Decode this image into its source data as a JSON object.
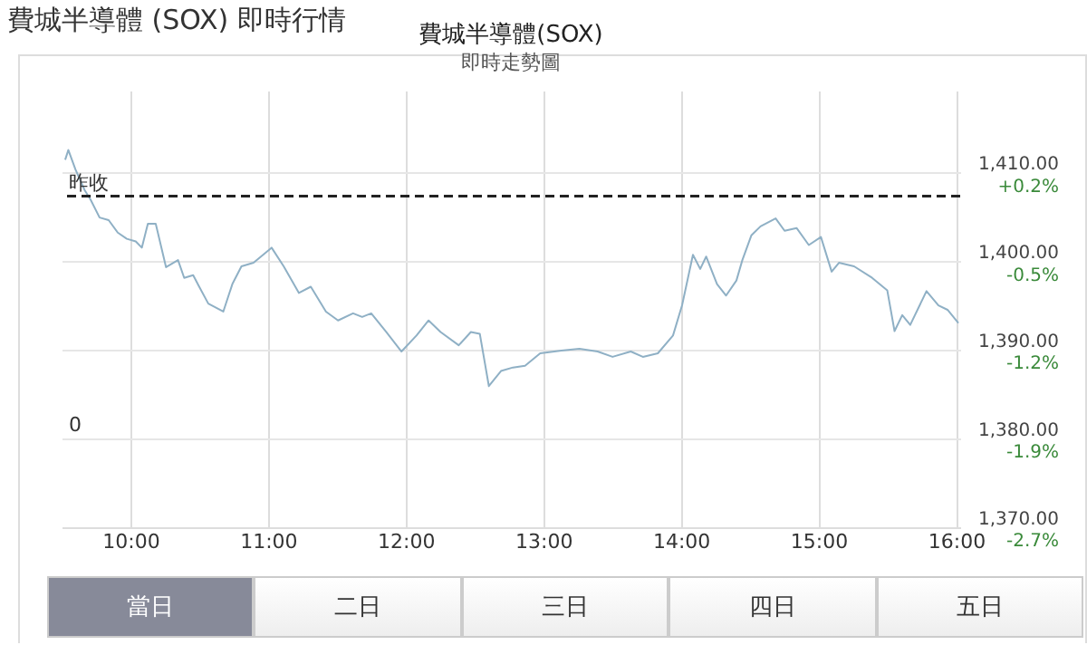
{
  "chart_data": {
    "type": "line",
    "title": "費城半導體(SOX)",
    "subtitle": "即時走勢圖",
    "annotations": [
      "費城半導體 (SOX) 即時行情",
      "0",
      "當日",
      "二日",
      "三日",
      "四日",
      "五日"
    ],
    "grid": true,
    "marker": "none",
    "line_style": "solid",
    "xlim": [
      9.5,
      16.03
    ],
    "ylim": [
      1370,
      1419.2
    ],
    "xticks": [
      {
        "value": 10,
        "label": "10:00"
      },
      {
        "value": 11,
        "label": "11:00"
      },
      {
        "value": 12,
        "label": "12:00"
      },
      {
        "value": 13,
        "label": "13:00"
      },
      {
        "value": 14,
        "label": "14:00"
      },
      {
        "value": 15,
        "label": "15:00"
      },
      {
        "value": 16,
        "label": "16:00"
      }
    ],
    "yticks": [
      {
        "value": 1370,
        "label": "1,370.00"
      },
      {
        "value": 1380,
        "label": "1,380.00"
      },
      {
        "value": 1390,
        "label": "1,390.00"
      },
      {
        "value": 1400,
        "label": "1,400.00"
      },
      {
        "value": 1410,
        "label": "1,410.00"
      }
    ],
    "y2lim": [
      -2.65,
      0.85
    ],
    "y2ticks": [
      {
        "value": -2.65,
        "label": "-2.7%"
      },
      {
        "value": -1.94,
        "label": "-1.9%"
      },
      {
        "value": -1.23,
        "label": "-1.2%"
      },
      {
        "value": -0.52,
        "label": "-0.5%"
      },
      {
        "value": 0.19,
        "label": "+0.2%"
      }
    ],
    "ref_lines": [
      {
        "axis": "y",
        "value": 1407.3,
        "label": "昨收",
        "color": "#222222",
        "line_style": "dashed"
      }
    ],
    "x": [
      9.526,
      9.549,
      9.601,
      9.667,
      9.711,
      9.776,
      9.842,
      9.908,
      9.974,
      10.039,
      10.083,
      10.127,
      10.184,
      10.259,
      10.346,
      10.391,
      10.456,
      10.5,
      10.566,
      10.675,
      10.741,
      10.807,
      10.895,
      11.026,
      11.114,
      11.224,
      11.311,
      11.421,
      11.509,
      11.618,
      11.684,
      11.75,
      11.859,
      11.97,
      12.079,
      12.167,
      12.254,
      12.386,
      12.474,
      12.539,
      12.605,
      12.693,
      12.78,
      12.868,
      12.978,
      13.132,
      13.263,
      13.395,
      13.504,
      13.636,
      13.724,
      13.833,
      13.943,
      14.009,
      14.088,
      14.141,
      14.184,
      14.263,
      14.329,
      14.404,
      14.447,
      14.513,
      14.579,
      14.689,
      14.754,
      14.842,
      14.93,
      15.018,
      15.096,
      15.149,
      15.259,
      15.39,
      15.5,
      15.553,
      15.609,
      15.667,
      15.785,
      15.872,
      15.938,
      16.017
    ],
    "series": [
      {
        "color": "#8fb0c5",
        "values": [
          1411.4,
          1412.5,
          1410.3,
          1408.0,
          1406.9,
          1404.9,
          1404.6,
          1403.2,
          1402.5,
          1402.2,
          1401.5,
          1404.2,
          1404.2,
          1399.3,
          1400.1,
          1398.1,
          1398.4,
          1397.1,
          1395.2,
          1394.3,
          1397.4,
          1399.4,
          1399.8,
          1401.5,
          1399.4,
          1396.4,
          1397.1,
          1394.3,
          1393.3,
          1394.1,
          1393.7,
          1394.1,
          1392.0,
          1389.8,
          1391.6,
          1393.3,
          1392.0,
          1390.5,
          1392.0,
          1391.8,
          1385.9,
          1387.6,
          1388.0,
          1388.2,
          1389.6,
          1389.9,
          1390.1,
          1389.8,
          1389.2,
          1389.8,
          1389.2,
          1389.6,
          1391.6,
          1395.0,
          1400.7,
          1399.1,
          1400.5,
          1397.4,
          1396.1,
          1397.8,
          1400.1,
          1402.9,
          1403.9,
          1404.8,
          1403.4,
          1403.7,
          1401.8,
          1402.7,
          1398.8,
          1399.8,
          1399.4,
          1398.1,
          1396.7,
          1392.1,
          1393.9,
          1392.8,
          1396.6,
          1395.0,
          1394.5,
          1393.0
        ]
      }
    ]
  }
}
